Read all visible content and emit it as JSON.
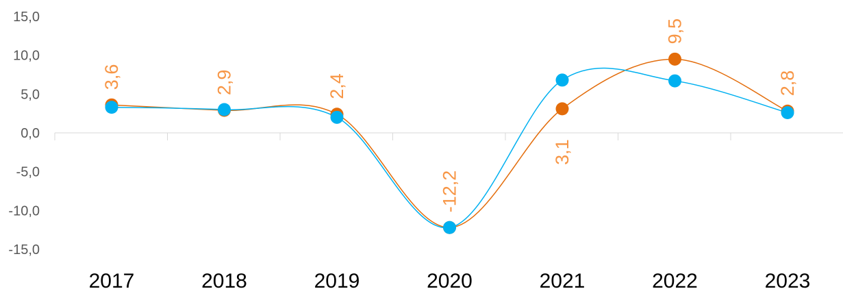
{
  "chart_data": {
    "type": "line",
    "categories": [
      "2017",
      "2018",
      "2019",
      "2020",
      "2021",
      "2022",
      "2023"
    ],
    "ylim": [
      -15,
      15
    ],
    "y_ticks": [
      "15,0",
      "10,0",
      "5,0",
      "0,0",
      "-5,0",
      "-10,0",
      "-15,0"
    ],
    "y_tick_values": [
      15,
      10,
      5,
      0,
      -5,
      -10,
      -15
    ],
    "smooth": true,
    "grid": false,
    "legend": "none",
    "series": [
      {
        "color": "#E36C0A",
        "values": [
          3.6,
          2.9,
          2.4,
          -12.2,
          3.1,
          9.5,
          2.8
        ],
        "labels": [
          "3,6",
          "2,9",
          "2,4",
          "-12,2",
          "3,1",
          "9,5",
          "2,8"
        ]
      },
      {
        "color": "#00B0F0",
        "values": [
          3.3,
          3.0,
          2.0,
          -12.2,
          6.8,
          6.7,
          2.6
        ]
      }
    ],
    "label_color": "#F79646",
    "axis_color": "#D9D9D9",
    "tick_text_color": "#595959",
    "category_text_color": "#000000"
  }
}
